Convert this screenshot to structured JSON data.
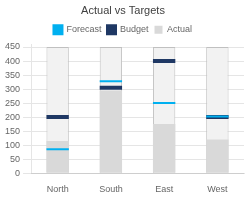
{
  "chart_data": {
    "type": "bar",
    "title": "Actual vs Targets",
    "categories": [
      "North",
      "South",
      "East",
      "West"
    ],
    "series": [
      {
        "values": [
          450,
          450,
          450,
          450
        ],
        "color": "#f2f2f2"
      },
      {
        "name": "Actual",
        "color": "#d9d9d9",
        "values": [
          115,
          295,
          175,
          120
        ]
      },
      {
        "name": "Budget",
        "type": "line",
        "marker": "line",
        "color": "#1f3864",
        "values": [
          200,
          305,
          400,
          200
        ]
      },
      {
        "name": "Forecast",
        "type": "line",
        "marker": "line",
        "color": "#00b0f0",
        "values": [
          85,
          328,
          250,
          202
        ]
      }
    ],
    "ylim": [
      0,
      460
    ],
    "yticks": [
      0,
      50,
      100,
      150,
      200,
      250,
      300,
      350,
      400,
      450
    ],
    "grid": true,
    "legend": "top"
  }
}
